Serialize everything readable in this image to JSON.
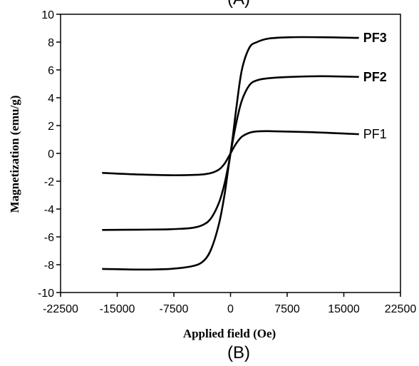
{
  "panel_label_top": "(A)",
  "panel_label": "(B)",
  "chart_data": {
    "type": "line",
    "xlabel": "Applied field (Oe)",
    "ylabel": "Magnetization (emu/g)",
    "xlim": [
      -22500,
      22500
    ],
    "ylim": [
      -10,
      10
    ],
    "xticks": [
      -22500,
      -15000,
      -7500,
      0,
      7500,
      15000,
      22500
    ],
    "yticks": [
      -10,
      -8,
      -6,
      -4,
      -2,
      0,
      2,
      4,
      6,
      8,
      10
    ],
    "grid": false,
    "series": [
      {
        "name": "PF1",
        "bold_label": false,
        "x": [
          -17000,
          -12000,
          -8000,
          -5000,
          -3500,
          -2500,
          -1500,
          -800,
          -300,
          0,
          300,
          800,
          1500,
          2500,
          3500,
          5000,
          8000,
          12000,
          17000
        ],
        "y": [
          -1.4,
          -1.52,
          -1.57,
          -1.55,
          -1.5,
          -1.4,
          -1.15,
          -0.75,
          -0.3,
          0.0,
          0.3,
          0.75,
          1.2,
          1.48,
          1.58,
          1.6,
          1.56,
          1.5,
          1.38
        ]
      },
      {
        "name": "PF2",
        "bold_label": true,
        "x": [
          -17000,
          -12000,
          -8000,
          -5000,
          -3500,
          -2500,
          -1500,
          -800,
          -300,
          0,
          300,
          800,
          1500,
          2500,
          3500,
          5000,
          8000,
          12000,
          17000
        ],
        "y": [
          -5.5,
          -5.48,
          -5.45,
          -5.35,
          -5.1,
          -4.6,
          -3.5,
          -2.2,
          -0.9,
          0.0,
          0.9,
          2.3,
          3.8,
          4.9,
          5.25,
          5.4,
          5.5,
          5.55,
          5.5
        ]
      },
      {
        "name": "PF3",
        "bold_label": true,
        "x": [
          -17000,
          -12000,
          -8000,
          -5000,
          -3500,
          -2500,
          -1500,
          -800,
          -300,
          0,
          300,
          800,
          1500,
          2500,
          3500,
          5000,
          8000,
          12000,
          17000
        ],
        "y": [
          -8.3,
          -8.35,
          -8.3,
          -8.1,
          -7.7,
          -6.8,
          -5.0,
          -3.0,
          -1.1,
          0.0,
          1.2,
          3.4,
          6.0,
          7.6,
          8.0,
          8.25,
          8.35,
          8.35,
          8.3
        ]
      }
    ]
  }
}
